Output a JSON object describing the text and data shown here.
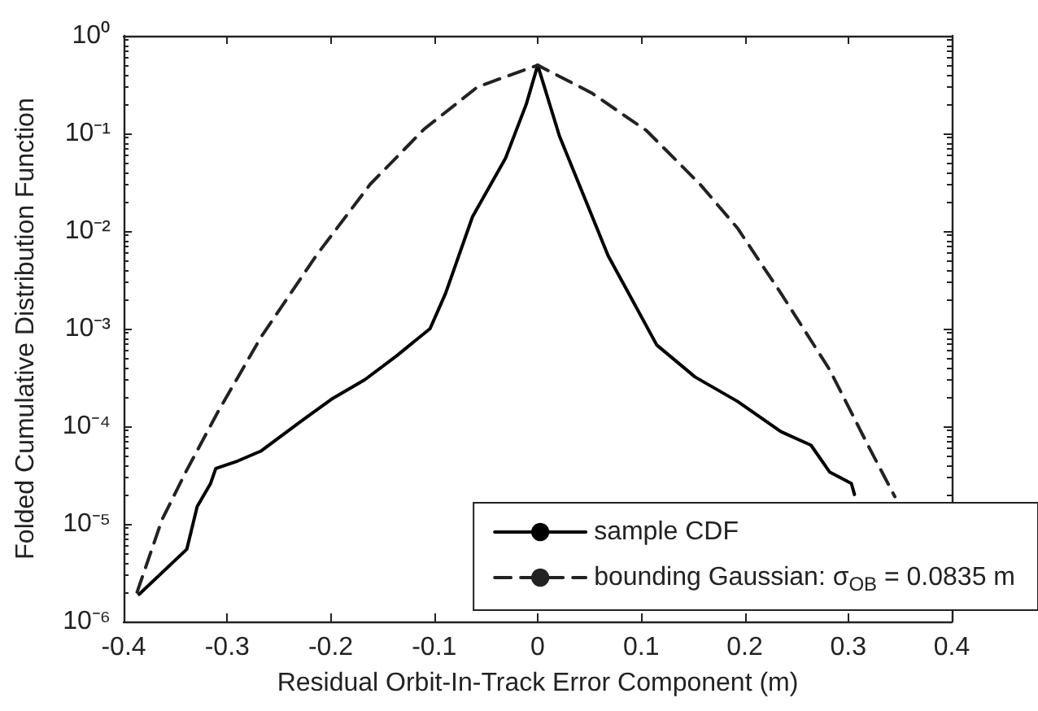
{
  "chart_data": {
    "type": "line",
    "xlabel": "Residual Orbit-In-Track Error Component (m)",
    "ylabel": "Folded Cumulative Distribution Function",
    "xlim": [
      -0.4,
      0.4
    ],
    "xticks": [
      -0.4,
      -0.3,
      -0.2,
      -0.1,
      0,
      0.1,
      0.2,
      0.3,
      0.4
    ],
    "ylim": [
      1e-06,
      1
    ],
    "yticks": [
      {
        "value": 1,
        "label": "10⁰"
      },
      {
        "value": 0.1,
        "label": "10⁻¹"
      },
      {
        "value": 0.01,
        "label": "10⁻²"
      },
      {
        "value": 0.001,
        "label": "10⁻³"
      },
      {
        "value": 0.0001,
        "label": "10⁻⁴"
      },
      {
        "value": 1e-05,
        "label": "10⁻⁵"
      },
      {
        "value": 1e-06,
        "label": "10⁻⁶"
      }
    ],
    "log": "y",
    "grid": false,
    "legend": "bottom right",
    "marker": "none",
    "series": [
      {
        "name": "sample CDF",
        "color": "#000000",
        "line_style": "solid",
        "x": [
          -0.385,
          -0.339,
          -0.329,
          -0.316,
          -0.311,
          -0.29,
          -0.267,
          -0.23,
          -0.199,
          -0.167,
          -0.136,
          -0.104,
          -0.089,
          -0.063,
          -0.031,
          -0.011,
          0,
          0.021,
          0.068,
          0.115,
          0.152,
          0.193,
          0.235,
          0.264,
          0.282,
          0.303,
          0.306
        ],
        "values": [
          1.9e-06,
          5.5e-06,
          1.5e-05,
          2.6e-05,
          3.7e-05,
          4.4e-05,
          5.6e-05,
          0.00011,
          0.00019,
          0.0003,
          0.00053,
          0.001,
          0.0023,
          0.014,
          0.056,
          0.2,
          0.5,
          0.094,
          0.0056,
          0.00068,
          0.00032,
          0.00018,
          8.8e-05,
          6.4e-05,
          3.4e-05,
          2.6e-05,
          2e-05
        ]
      },
      {
        "name": "bounding Gaussian: σ$_{OB}$ = 0.0835 m",
        "color": "#222222",
        "line_style": "dashed",
        "x": [
          -0.387,
          -0.363,
          -0.34,
          -0.309,
          -0.267,
          -0.214,
          -0.162,
          -0.11,
          -0.058,
          0,
          0.052,
          0.105,
          0.157,
          0.193,
          0.235,
          0.282,
          0.319,
          0.345
        ],
        "values": [
          2e-06,
          1.1e-05,
          3.4e-05,
          0.00014,
          0.00083,
          0.0056,
          0.03,
          0.11,
          0.3,
          0.5,
          0.26,
          0.107,
          0.03,
          0.0107,
          0.0023,
          0.00038,
          6.4e-05,
          1.9e-05
        ]
      }
    ]
  }
}
